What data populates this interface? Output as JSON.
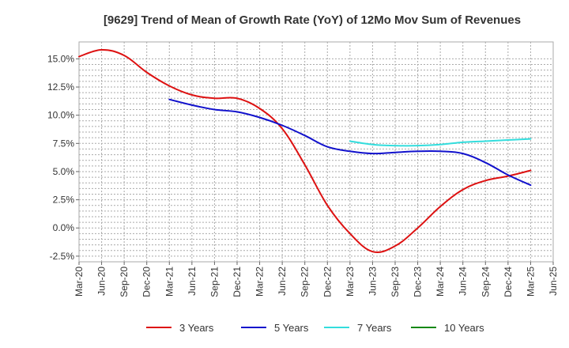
{
  "chart_data": {
    "type": "line",
    "title": "[9629]  Trend of Mean of Growth Rate (YoY) of 12Mo Mov Sum of Revenues",
    "xlabel": "",
    "ylabel": "",
    "ylim": [
      -3.0,
      16.5
    ],
    "y_ticks": [
      -2.5,
      0.0,
      2.5,
      5.0,
      7.5,
      10.0,
      12.5,
      15.0
    ],
    "y_tick_labels": [
      "-2.5%",
      "0.0%",
      "2.5%",
      "5.0%",
      "7.5%",
      "10.0%",
      "12.5%",
      "15.0%"
    ],
    "categories": [
      "Mar-20",
      "Jun-20",
      "Sep-20",
      "Dec-20",
      "Mar-21",
      "Jun-21",
      "Sep-21",
      "Dec-21",
      "Mar-22",
      "Jun-22",
      "Sep-22",
      "Dec-22",
      "Mar-23",
      "Jun-23",
      "Sep-23",
      "Dec-23",
      "Mar-24",
      "Jun-24",
      "Sep-24",
      "Dec-24",
      "Mar-25",
      "Jun-25"
    ],
    "grid": true,
    "legend_position": "bottom",
    "series": [
      {
        "name": "3 Years",
        "color": "#dd1111",
        "values": [
          15.2,
          15.8,
          15.3,
          13.8,
          12.6,
          11.8,
          11.5,
          11.5,
          10.6,
          8.8,
          5.6,
          2.0,
          -0.5,
          -2.1,
          -1.6,
          0.0,
          1.9,
          3.4,
          4.2,
          4.6,
          5.1,
          null
        ]
      },
      {
        "name": "5 Years",
        "color": "#1111cc",
        "values": [
          null,
          null,
          null,
          null,
          11.4,
          10.9,
          10.5,
          10.3,
          9.8,
          9.1,
          8.2,
          7.2,
          6.8,
          6.6,
          6.7,
          6.8,
          6.8,
          6.6,
          5.8,
          4.7,
          3.8,
          null
        ]
      },
      {
        "name": "7 Years",
        "color": "#33dddd",
        "values": [
          null,
          null,
          null,
          null,
          null,
          null,
          null,
          null,
          null,
          null,
          null,
          null,
          7.7,
          7.4,
          7.3,
          7.3,
          7.4,
          7.6,
          7.7,
          7.8,
          7.9,
          null
        ]
      },
      {
        "name": "10 Years",
        "color": "#118811",
        "values": [
          null,
          null,
          null,
          null,
          null,
          null,
          null,
          null,
          null,
          null,
          null,
          null,
          null,
          null,
          null,
          null,
          null,
          null,
          null,
          null,
          null,
          null
        ]
      }
    ]
  }
}
